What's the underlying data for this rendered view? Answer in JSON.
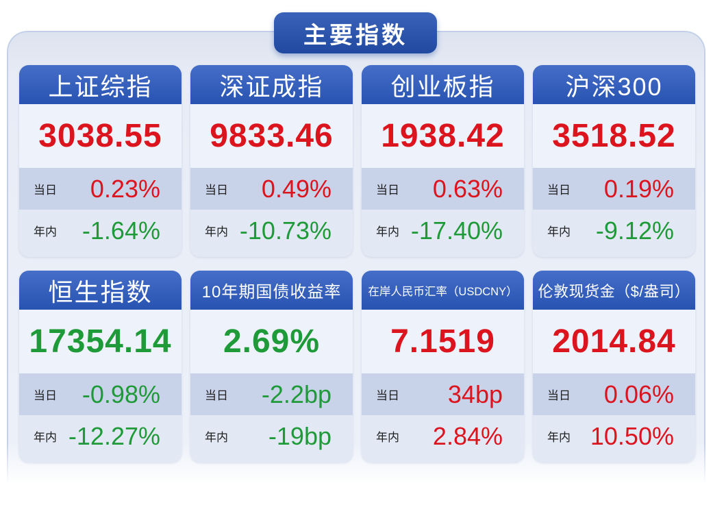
{
  "title": "主要指数",
  "labels": {
    "daily": "当日",
    "ytd": "年内"
  },
  "colors": {
    "red": "#db141d",
    "green": "#1f9a38",
    "header_blue": "#2b5ac0",
    "title_blue": "#2451b2",
    "daily_band": "#c8d2e9"
  },
  "cards": [
    {
      "name": "上证综指",
      "value": "3038.55",
      "value_color": "red",
      "daily": "0.23%",
      "daily_color": "red",
      "ytd": "-1.64%",
      "ytd_color": "green"
    },
    {
      "name": "深证成指",
      "value": "9833.46",
      "value_color": "red",
      "daily": "0.49%",
      "daily_color": "red",
      "ytd": "-10.73%",
      "ytd_color": "green"
    },
    {
      "name": "创业板指",
      "value": "1938.42",
      "value_color": "red",
      "daily": "0.63%",
      "daily_color": "red",
      "ytd": "-17.40%",
      "ytd_color": "green"
    },
    {
      "name": "沪深300",
      "value": "3518.52",
      "value_color": "red",
      "daily": "0.19%",
      "daily_color": "red",
      "ytd": "-9.12%",
      "ytd_color": "green"
    },
    {
      "name": "恒生指数",
      "value": "17354.14",
      "value_color": "green",
      "daily": "-0.98%",
      "daily_color": "green",
      "ytd": "-12.27%",
      "ytd_color": "green"
    },
    {
      "name": "10年期国债收益率",
      "value": "2.69%",
      "value_color": "green",
      "daily": "-2.2bp",
      "daily_color": "green",
      "ytd": "-19bp",
      "ytd_color": "green"
    },
    {
      "name": "在岸人民币汇率（USDCNY）",
      "value": "7.1519",
      "value_color": "red",
      "daily": "34bp",
      "daily_color": "red",
      "ytd": "2.84%",
      "ytd_color": "red"
    },
    {
      "name": "伦敦现货金（$/盎司）",
      "value": "2014.84",
      "value_color": "red",
      "daily": "0.06%",
      "daily_color": "red",
      "ytd": "10.50%",
      "ytd_color": "red"
    }
  ]
}
